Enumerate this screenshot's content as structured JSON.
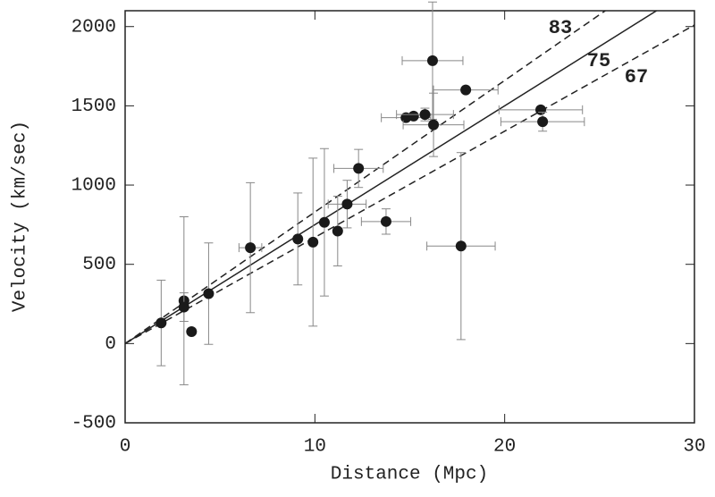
{
  "chart_data": {
    "type": "scatter",
    "x_label": "Distance (Mpc)",
    "y_label": "Velocity (km/sec)",
    "xlim": [
      0,
      30
    ],
    "ylim": [
      -500,
      2100
    ],
    "xticks": [
      0,
      10,
      20,
      30
    ],
    "yticks": [
      -500,
      0,
      500,
      1000,
      1500,
      2000
    ],
    "color": "#1a1a1a",
    "x": [
      1.9,
      3.1,
      3.1,
      3.5,
      4.4,
      6.6,
      9.1,
      9.9,
      10.5,
      11.2,
      11.7,
      12.3,
      13.75,
      14.8,
      15.2,
      15.8,
      16.2,
      16.25,
      17.7,
      17.95,
      21.9,
      22.0
    ],
    "values": [
      130,
      270,
      230,
      75,
      315,
      605,
      660,
      640,
      765,
      710,
      880,
      1105,
      770,
      1425,
      1435,
      1445,
      1785,
      1380,
      615,
      1600,
      1475,
      1400
    ],
    "yerr": [
      270,
      530,
      90,
      null,
      320,
      410,
      290,
      530,
      465,
      220,
      150,
      120,
      80,
      null,
      null,
      40,
      370,
      200,
      590,
      null,
      null,
      60
    ],
    "xerr": [
      null,
      null,
      null,
      null,
      null,
      0.6,
      null,
      null,
      null,
      null,
      1.0,
      1.3,
      1.3,
      1.3,
      null,
      1.5,
      1.6,
      1.6,
      1.8,
      1.7,
      2.2,
      2.2
    ],
    "hubble_lines": [
      {
        "label": 83,
        "dashed": true
      },
      {
        "label": 75,
        "dashed": false
      },
      {
        "label": 67,
        "dashed": true
      }
    ]
  }
}
